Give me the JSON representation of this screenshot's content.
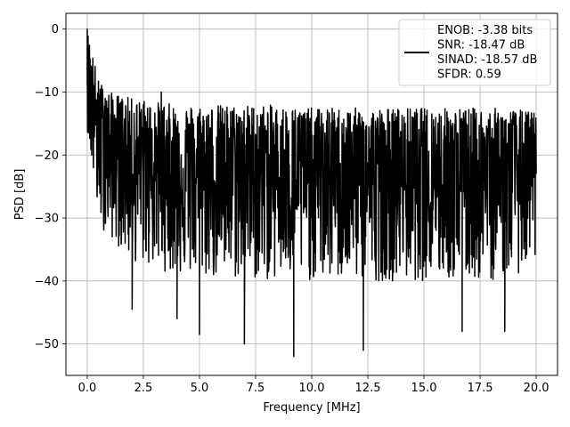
{
  "chart_data": {
    "type": "line",
    "title": "",
    "xlabel": "Frequency [MHz]",
    "ylabel": "PSD [dB]",
    "xlim": [
      -0.95,
      20.95
    ],
    "ylim": [
      -55,
      2.5
    ],
    "xticks": [
      0.0,
      2.5,
      5.0,
      7.5,
      10.0,
      12.5,
      15.0,
      17.5,
      20.0
    ],
    "xtick_labels": [
      "0.0",
      "2.5",
      "5.0",
      "7.5",
      "10.0",
      "12.5",
      "15.0",
      "17.5",
      "20.0"
    ],
    "yticks": [
      0,
      -10,
      -20,
      -30,
      -40,
      -50
    ],
    "ytick_labels": [
      "0",
      "−10",
      "−20",
      "−30",
      "−40",
      "−50"
    ],
    "grid": true,
    "legend": {
      "placement": "top-right",
      "entries": [
        "ENOB: -3.38 bits",
        "SNR: -18.47 dB",
        "SINAD: -18.57 dB",
        "SFDR: 0.59"
      ]
    },
    "series": [
      {
        "color": "#000000",
        "approx_points": {
          "x": [
            0.0,
            0.05,
            0.1,
            0.2,
            0.3,
            0.5,
            0.8,
            1.0,
            1.5,
            2.0,
            2.5,
            3.0,
            3.3,
            4.0,
            5.0,
            6.0,
            7.0,
            7.5,
            9.2,
            10.0,
            12.3,
            13.0,
            15.0,
            16.7,
            18.6,
            20.0
          ],
          "y": [
            0.0,
            -16.5,
            -5.0,
            -20.0,
            -9.0,
            -22.0,
            -11.0,
            -25.0,
            -14.0,
            -44.5,
            -12.0,
            -20.0,
            -10.0,
            -46.0,
            -48.5,
            -20.0,
            -50.0,
            -22.0,
            -52.0,
            -20.0,
            -51.0,
            -23.0,
            -21.0,
            -48.0,
            -48.0,
            -23.0
          ]
        },
        "envelope": {
          "x": [
            0.0,
            0.5,
            1.0,
            2.0,
            3.0,
            4.0,
            6.0,
            8.0,
            10.0,
            12.0,
            14.0,
            16.0,
            18.0,
            20.0
          ],
          "upper": [
            0.0,
            -8.0,
            -10.0,
            -11.0,
            -11.5,
            -12.0,
            -12.0,
            -12.0,
            -12.5,
            -12.5,
            -12.5,
            -12.5,
            -12.5,
            -13.0
          ],
          "lower": [
            -16.0,
            -31.0,
            -33.0,
            -37.0,
            -38.0,
            -39.0,
            -40.0,
            -40.0,
            -40.0,
            -40.0,
            -40.0,
            -40.0,
            -40.0,
            -38.0
          ]
        }
      }
    ]
  }
}
